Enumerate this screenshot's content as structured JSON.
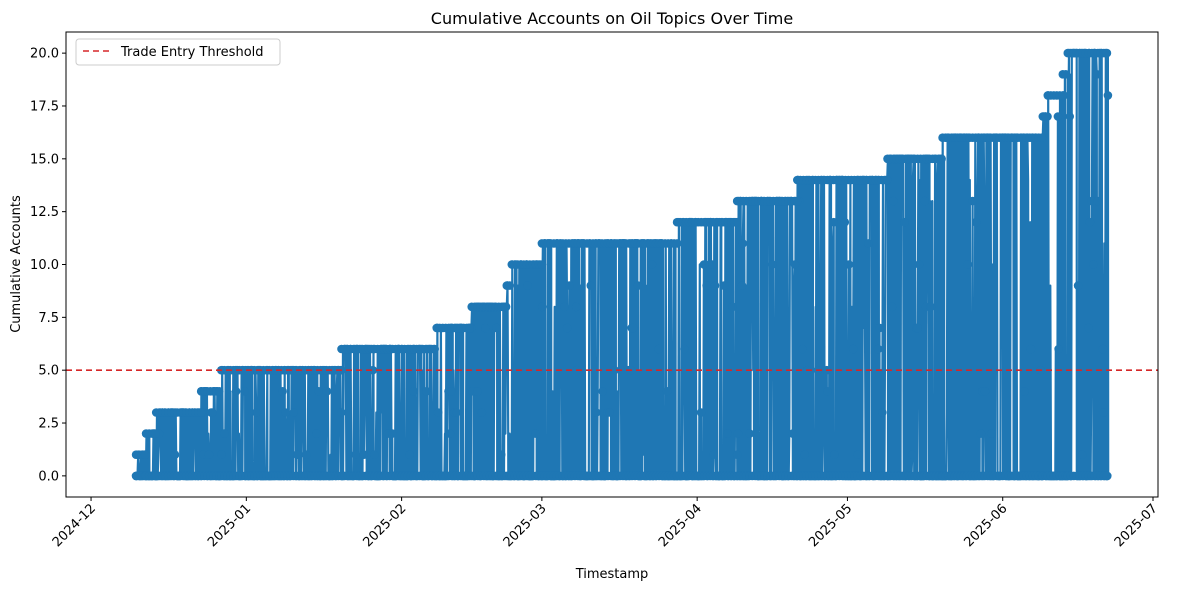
{
  "chart_data": {
    "type": "line",
    "title": "Cumulative Accounts on Oil Topics Over Time",
    "xlabel": "Timestamp",
    "ylabel": "Cumulative Accounts",
    "xlim": [
      "2024-11-26",
      "2025-07-02"
    ],
    "ylim": [
      -1.0,
      21.0
    ],
    "x_ticks": [
      "2024-12",
      "2025-01",
      "2025-02",
      "2025-03",
      "2025-04",
      "2025-05",
      "2025-06",
      "2025-07"
    ],
    "x_tick_dates": [
      "2024-12-01",
      "2025-01-01",
      "2025-02-01",
      "2025-03-01",
      "2025-04-01",
      "2025-05-01",
      "2025-06-01",
      "2025-07-01"
    ],
    "y_ticks": [
      "0.0",
      "2.5",
      "5.0",
      "7.5",
      "10.0",
      "12.5",
      "15.0",
      "17.5",
      "20.0"
    ],
    "y_tick_values": [
      0,
      2.5,
      5,
      7.5,
      10,
      12.5,
      15,
      17.5,
      20
    ],
    "grid": false,
    "legend": {
      "placement": "top-left",
      "entries": [
        {
          "label": "Trade Entry Threshold",
          "color": "#d62728",
          "style": "dashed"
        }
      ]
    },
    "threshold": {
      "name": "Trade Entry Threshold",
      "value": 5.0,
      "color": "#d62728"
    },
    "series": [
      {
        "color": "#1f77b4",
        "marker": "circle",
        "start_x": "2024-12-10",
        "end_x": "2025-06-22",
        "cumulative_max_steps": [
          [
            "2024-12-10",
            1
          ],
          [
            "2024-12-12",
            2
          ],
          [
            "2024-12-14",
            3
          ],
          [
            "2024-12-23",
            4
          ],
          [
            "2024-12-27",
            5
          ],
          [
            "2025-01-20",
            6
          ],
          [
            "2025-02-08",
            7
          ],
          [
            "2025-02-15",
            8
          ],
          [
            "2025-02-22",
            9
          ],
          [
            "2025-02-23",
            10
          ],
          [
            "2025-03-01",
            11
          ],
          [
            "2025-03-28",
            12
          ],
          [
            "2025-04-09",
            13
          ],
          [
            "2025-04-21",
            14
          ],
          [
            "2025-05-09",
            15
          ],
          [
            "2025-05-20",
            16
          ],
          [
            "2025-06-09",
            17
          ],
          [
            "2025-06-10",
            18
          ],
          [
            "2025-06-13",
            19
          ],
          [
            "2025-06-14",
            20
          ]
        ],
        "final_value": 18,
        "min_value": 0
      }
    ]
  }
}
